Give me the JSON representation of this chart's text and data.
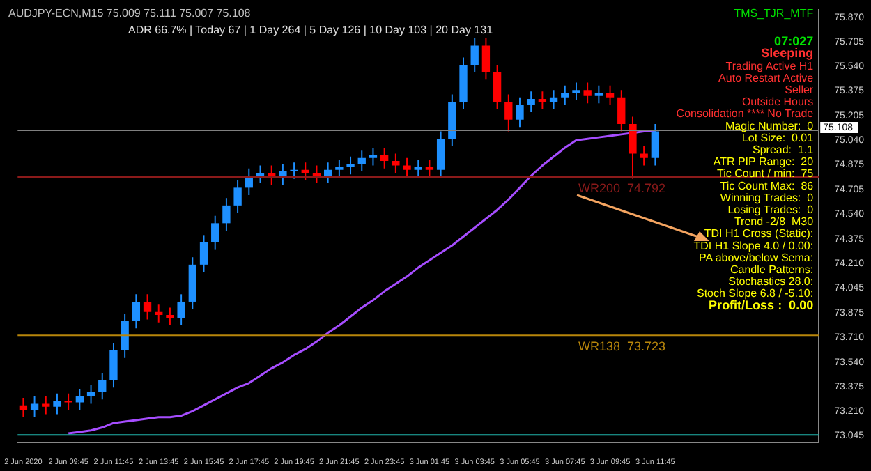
{
  "chart_data": {
    "type": "candlestick",
    "title": "AUDJPY-ECN,M15 75.009 75.111 75.007 75.108",
    "subtitle": "ADR 66.7% | Today 67 | 1 Day 264 | 5 Day 126 | 10 Day 103 | 20 Day 131",
    "categories": [
      "2 Jun 2020",
      null,
      null,
      null,
      "2 Jun 09:45",
      null,
      null,
      null,
      "2 Jun 11:45",
      null,
      null,
      null,
      "2 Jun 13:45",
      null,
      null,
      null,
      "2 Jun 15:45",
      null,
      null,
      null,
      "2 Jun 17:45",
      null,
      null,
      null,
      "2 Jun 19:45",
      null,
      null,
      null,
      "2 Jun 21:45",
      null,
      null,
      null,
      "2 Jun 23:45",
      null,
      null,
      null,
      "3 Jun 01:45",
      null,
      null,
      null,
      "3 Jun 03:45",
      null,
      null,
      null,
      "3 Jun 05:45",
      null,
      null,
      null,
      "3 Jun 07:45",
      null,
      null,
      null,
      "3 Jun 09:45",
      null,
      null,
      null,
      "3 Jun 11:45",
      null,
      null,
      null,
      null,
      null,
      null,
      null,
      null,
      null,
      null,
      null,
      null,
      null,
      null
    ],
    "series": [
      {
        "type": "line",
        "color": "#a64dff",
        "values": [
          null,
          null,
          null,
          null,
          73.06,
          73.07,
          73.08,
          73.1,
          73.13,
          73.14,
          73.15,
          73.16,
          73.17,
          73.17,
          73.18,
          73.21,
          73.25,
          73.29,
          73.33,
          73.37,
          73.4,
          73.45,
          73.5,
          73.54,
          73.59,
          73.63,
          73.68,
          73.74,
          73.79,
          73.85,
          73.91,
          73.96,
          74.02,
          74.07,
          74.12,
          74.18,
          74.23,
          74.28,
          74.33,
          74.39,
          74.45,
          74.51,
          74.57,
          74.64,
          74.72,
          74.8,
          74.87,
          74.93,
          74.99,
          75.04,
          75.05,
          75.06,
          75.07,
          75.08,
          75.09,
          75.1,
          75.1,
          null,
          null,
          null,
          null,
          null,
          null,
          null,
          null,
          null,
          null,
          null,
          null,
          null,
          null
        ]
      }
    ],
    "colors": [
      "#ff0000",
      "#1e90ff",
      "#ff0000",
      "#1e90ff",
      "#ff0000",
      "#1e90ff",
      "#1e90ff",
      "#1e90ff",
      "#1e90ff",
      "#1e90ff",
      "#1e90ff",
      "#ff0000",
      "#ff0000",
      "#ff0000",
      "#1e90ff",
      "#1e90ff",
      "#1e90ff",
      "#1e90ff",
      "#1e90ff",
      "#1e90ff",
      "#1e90ff",
      "#1e90ff",
      "#ff0000",
      "#1e90ff",
      "#1e90ff",
      "#ff0000",
      "#ff0000",
      "#1e90ff",
      "#1e90ff",
      "#1e90ff",
      "#1e90ff",
      "#1e90ff",
      "#ff0000",
      "#ff0000",
      "#ff0000",
      "#1e90ff",
      "#ff0000",
      "#1e90ff",
      "#1e90ff",
      "#1e90ff",
      "#1e90ff",
      "#ff0000",
      "#ff0000",
      "#ff0000",
      "#1e90ff",
      "#1e90ff",
      "#ff0000",
      "#1e90ff",
      "#1e90ff",
      "#1e90ff",
      "#ff0000",
      "#1e90ff",
      "#ff0000",
      "#ff0000",
      "#ff0000",
      "#ff0000",
      "#1e90ff",
      null,
      null,
      null,
      null,
      null,
      null,
      null,
      null,
      null,
      null,
      null,
      null,
      null,
      null
    ],
    "ohlc": [
      [
        73.25,
        73.3,
        73.17,
        73.22
      ],
      [
        73.22,
        73.31,
        73.17,
        73.26
      ],
      [
        73.26,
        73.31,
        73.19,
        73.24
      ],
      [
        73.24,
        73.33,
        73.19,
        73.28
      ],
      [
        73.28,
        73.33,
        73.22,
        73.27
      ],
      [
        73.27,
        73.36,
        73.22,
        73.31
      ],
      [
        73.31,
        73.39,
        73.26,
        73.34
      ],
      [
        73.34,
        73.47,
        73.29,
        73.42
      ],
      [
        73.42,
        73.67,
        73.37,
        73.62
      ],
      [
        73.62,
        73.87,
        73.57,
        73.82
      ],
      [
        73.82,
        74.0,
        73.77,
        73.95
      ],
      [
        73.95,
        74.0,
        73.83,
        73.88
      ],
      [
        73.88,
        73.93,
        73.81,
        73.86
      ],
      [
        73.86,
        73.91,
        73.79,
        73.84
      ],
      [
        73.84,
        74.0,
        73.79,
        73.95
      ],
      [
        73.95,
        74.25,
        73.9,
        74.2
      ],
      [
        74.2,
        74.4,
        74.15,
        74.35
      ],
      [
        74.35,
        74.53,
        74.3,
        74.48
      ],
      [
        74.48,
        74.65,
        74.43,
        74.6
      ],
      [
        74.6,
        74.77,
        74.55,
        74.72
      ],
      [
        74.72,
        74.85,
        74.67,
        74.8
      ],
      [
        74.8,
        74.87,
        74.75,
        74.82
      ],
      [
        74.82,
        74.87,
        74.74,
        74.79
      ],
      [
        74.79,
        74.88,
        74.74,
        74.83
      ],
      [
        74.83,
        74.89,
        74.78,
        74.84
      ],
      [
        74.84,
        74.89,
        74.77,
        74.82
      ],
      [
        74.82,
        74.87,
        74.75,
        74.8
      ],
      [
        74.8,
        74.89,
        74.75,
        74.84
      ],
      [
        74.84,
        74.91,
        74.79,
        74.86
      ],
      [
        74.86,
        74.93,
        74.81,
        74.88
      ],
      [
        74.88,
        74.97,
        74.83,
        74.92
      ],
      [
        74.92,
        74.99,
        74.87,
        74.94
      ],
      [
        74.94,
        74.99,
        74.85,
        74.9
      ],
      [
        74.9,
        74.95,
        74.82,
        74.87
      ],
      [
        74.87,
        74.92,
        74.79,
        74.84
      ],
      [
        74.84,
        74.91,
        74.79,
        74.86
      ],
      [
        74.86,
        74.91,
        74.79,
        74.84
      ],
      [
        74.84,
        75.1,
        74.79,
        75.05
      ],
      [
        75.05,
        75.35,
        75.0,
        75.3
      ],
      [
        75.3,
        75.6,
        75.25,
        75.55
      ],
      [
        75.55,
        75.73,
        75.5,
        75.68
      ],
      [
        75.68,
        75.73,
        75.45,
        75.5
      ],
      [
        75.5,
        75.55,
        75.25,
        75.3
      ],
      [
        75.3,
        75.35,
        75.1,
        75.18
      ],
      [
        75.18,
        75.33,
        75.13,
        75.28
      ],
      [
        75.28,
        75.37,
        75.23,
        75.32
      ],
      [
        75.32,
        75.37,
        75.25,
        75.3
      ],
      [
        75.3,
        75.38,
        75.25,
        75.33
      ],
      [
        75.33,
        75.41,
        75.28,
        75.36
      ],
      [
        75.36,
        75.43,
        75.31,
        75.38
      ],
      [
        75.38,
        75.43,
        75.29,
        75.34
      ],
      [
        75.34,
        75.41,
        75.29,
        75.36
      ],
      [
        75.36,
        75.41,
        75.28,
        75.33
      ],
      [
        75.33,
        75.38,
        75.1,
        75.15
      ],
      [
        75.15,
        75.2,
        74.78,
        74.95
      ],
      [
        74.95,
        75.0,
        74.87,
        74.92
      ],
      [
        74.92,
        75.15,
        74.87,
        75.1
      ],
      null,
      null,
      null,
      null,
      null,
      null,
      null,
      null,
      null,
      null,
      null,
      null,
      null,
      null
    ],
    "ylim": [
      73.0,
      75.92
    ],
    "yticks": [
      73.045,
      {
        "value": 73.21,
        "label": "73.210"
      },
      73.375,
      {
        "value": 73.54,
        "label": "73.540"
      },
      {
        "value": 73.71,
        "label": "73.710"
      },
      73.875,
      74.045,
      {
        "value": 74.21,
        "label": "74.210"
      },
      74.375,
      {
        "value": 74.54,
        "label": "74.540"
      },
      74.705,
      74.875,
      {
        "value": 75.04,
        "label": "75.040"
      },
      75.205,
      75.375,
      {
        "value": 75.54,
        "label": "75.540"
      },
      75.705,
      {
        "value": 75.87,
        "label": "75.870"
      }
    ],
    "ref_lines": [
      {
        "axis": "y",
        "value": 75.108,
        "label": "75.108",
        "color": "#808080"
      },
      {
        "axis": "y",
        "value": 74.792,
        "label": "WR200  74.792",
        "color": "#8b1a1a"
      },
      {
        "axis": "y",
        "value": 73.723,
        "label": "WR138  73.723",
        "color": "#b8860b"
      },
      {
        "axis": "y",
        "value": 73.05,
        "color": "#20b2aa"
      }
    ],
    "annotations": [
      "TMS_TJR_MTF",
      "07:027",
      "Sleeping",
      "Trading Active H1",
      "Auto Restart Active",
      "Seller",
      "Outside Hours",
      "Consolidation **** No Trade",
      "Magic Number:  0",
      "Lot Size:  0.01",
      "Spread:  1.1",
      "ATR PIP Range:  20",
      "Tic Count / min:  75",
      "Tic Count Max:  86",
      "Winning Trades:  0",
      "Losing Trades:  0",
      "Trend -2/8  M30",
      "TDI H1 Cross (Static):",
      "TDI H1 Slope 4.0 / 0.00:",
      "PA above/below Sema:",
      "Candle Patterns:",
      "Stochastics 28.0:",
      "Stoch Slope 6.8 / -5.10:",
      "Profit/Loss :  0.00"
    ],
    "grid": false,
    "legend": false
  }
}
